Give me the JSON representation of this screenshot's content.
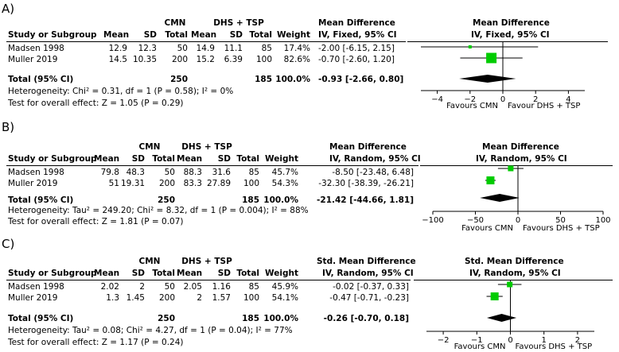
{
  "chart_data": [
    {
      "type": "table",
      "panel_label": "A)",
      "groups": {
        "experimental": "CMN",
        "control": "DHS + TSP",
        "effect_title": "Mean Difference",
        "effect_sub": "IV, Fixed, 95% CI",
        "plot_title": "Mean Difference",
        "plot_sub": "IV, Fixed, 95% CI"
      },
      "columns": {
        "study": "Study or Subgroup",
        "mean": "Mean",
        "sd": "SD",
        "total": "Total",
        "weight": "Weight"
      },
      "studies": [
        {
          "name": "Madsen 1998",
          "e_mean": "12.9",
          "e_sd": "12.3",
          "e_total": "50",
          "c_mean": "14.9",
          "c_sd": "11.1",
          "c_total": "85",
          "weight": "17.4%",
          "ci_text": "-2.00 [-6.15, 2.15]",
          "est": -2.0,
          "lo": -6.15,
          "hi": 2.15,
          "w": 17.4
        },
        {
          "name": "Muller 2019",
          "e_mean": "14.5",
          "e_sd": "10.35",
          "e_total": "200",
          "c_mean": "15.2",
          "c_sd": "6.39",
          "c_total": "100",
          "weight": "82.6%",
          "ci_text": "-0.70 [-2.60, 1.20]",
          "est": -0.7,
          "lo": -2.6,
          "hi": 1.2,
          "w": 82.6
        }
      ],
      "total": {
        "name": "Total (95% CI)",
        "e_total": "250",
        "c_total": "185",
        "weight": "100.0%",
        "ci_text": "-0.93 [-2.66, 0.80]",
        "est": -0.93,
        "lo": -2.66,
        "hi": 0.8
      },
      "heterogeneity": "Heterogeneity: Chi² = 0.31, df = 1 (P = 0.58); I² = 0%",
      "overall_test": "Test for overall effect: Z = 1.05 (P = 0.29)",
      "axis": {
        "min": -5,
        "max": 5,
        "ticks": [
          -4,
          -2,
          0,
          2,
          4
        ],
        "tick_labels": [
          "−4",
          "−2",
          "0",
          "2",
          "4"
        ],
        "left_label": "Favours CMN",
        "right_label": "Favour DHS + TSP"
      },
      "colors": {
        "marker": "#00cc00"
      }
    },
    {
      "type": "table",
      "panel_label": "B)",
      "groups": {
        "experimental": "CMN",
        "control": "DHS + TSP",
        "effect_title": "Mean Difference",
        "effect_sub": "IV, Random, 95% CI",
        "plot_title": "Mean Difference",
        "plot_sub": "IV, Random, 95% CI"
      },
      "columns": {
        "study": "Study or Subgroup",
        "mean": "Mean",
        "sd": "SD",
        "total": "Total",
        "weight": "Weight"
      },
      "studies": [
        {
          "name": "Madsen 1998",
          "e_mean": "79.8",
          "e_sd": "48.3",
          "e_total": "50",
          "c_mean": "88.3",
          "c_sd": "31.6",
          "c_total": "85",
          "weight": "45.7%",
          "ci_text": "-8.50 [-23.48, 6.48]",
          "est": -8.5,
          "lo": -23.48,
          "hi": 6.48,
          "w": 45.7
        },
        {
          "name": "Muller 2019",
          "e_mean": "51",
          "e_sd": "19.31",
          "e_total": "200",
          "c_mean": "83.3",
          "c_sd": "27.89",
          "c_total": "100",
          "weight": "54.3%",
          "ci_text": "-32.30 [-38.39, -26.21]",
          "est": -32.3,
          "lo": -38.39,
          "hi": -26.21,
          "w": 54.3
        }
      ],
      "total": {
        "name": "Total (95% CI)",
        "e_total": "250",
        "c_total": "185",
        "weight": "100.0%",
        "ci_text": "-21.42 [-44.66, 1.81]",
        "est": -21.42,
        "lo": -44.66,
        "hi": 1.81
      },
      "heterogeneity": "Heterogeneity: Tau² = 249.20; Chi² = 8.32, df = 1 (P = 0.004); I² = 88%",
      "overall_test": "Test for overall effect: Z = 1.81 (P = 0.07)",
      "axis": {
        "min": -100,
        "max": 100,
        "ticks": [
          -100,
          -50,
          0,
          50,
          100
        ],
        "tick_labels": [
          "−100",
          "−50",
          "0",
          "50",
          "100"
        ],
        "left_label": "Favours CMN",
        "right_label": "Favours DHS + TSP"
      },
      "colors": {
        "marker": "#00cc00"
      }
    },
    {
      "type": "table",
      "panel_label": "C)",
      "groups": {
        "experimental": "CMN",
        "control": "DHS + TSP",
        "effect_title": "Std. Mean Difference",
        "effect_sub": "IV, Random, 95% CI",
        "plot_title": "Std. Mean Difference",
        "plot_sub": "IV, Random, 95% CI"
      },
      "columns": {
        "study": "Study or Subgroup",
        "mean": "Mean",
        "sd": "SD",
        "total": "Total",
        "weight": "Weight"
      },
      "studies": [
        {
          "name": "Madsen 1998",
          "e_mean": "2.02",
          "e_sd": "2",
          "e_total": "50",
          "c_mean": "2.05",
          "c_sd": "1.16",
          "c_total": "85",
          "weight": "45.9%",
          "ci_text": "-0.02 [-0.37, 0.33]",
          "est": -0.02,
          "lo": -0.37,
          "hi": 0.33,
          "w": 45.9
        },
        {
          "name": "Muller 2019",
          "e_mean": "1.3",
          "e_sd": "1.45",
          "e_total": "200",
          "c_mean": "2",
          "c_sd": "1.57",
          "c_total": "100",
          "weight": "54.1%",
          "ci_text": "-0.47 [-0.71, -0.23]",
          "est": -0.47,
          "lo": -0.71,
          "hi": -0.23,
          "w": 54.1
        }
      ],
      "total": {
        "name": "Total (95% CI)",
        "e_total": "250",
        "c_total": "185",
        "weight": "100.0%",
        "ci_text": "-0.26 [-0.70, 0.18]",
        "est": -0.26,
        "lo": -0.7,
        "hi": 0.18
      },
      "heterogeneity": "Heterogeneity: Tau² = 0.08; Chi² = 4.27, df = 1 (P = 0.04); I² = 77%",
      "overall_test": "Test for overall effect: Z = 1.17 (P = 0.24)",
      "axis": {
        "min": -2.5,
        "max": 2.5,
        "ticks": [
          -2,
          -1,
          0,
          1,
          2
        ],
        "tick_labels": [
          "−2",
          "−1",
          "0",
          "1",
          "2"
        ],
        "left_label": "Favours CMN",
        "right_label": "Favours DHS + TSP"
      },
      "colors": {
        "marker": "#00cc00"
      }
    }
  ]
}
